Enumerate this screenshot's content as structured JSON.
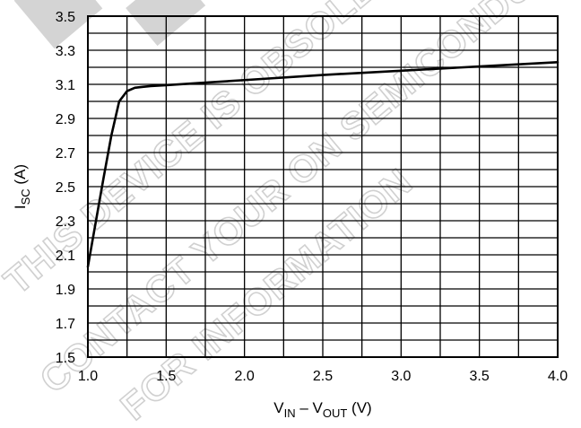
{
  "watermark": {
    "lines": [
      "THIS DEVICE IS OBSOLETE",
      "CONTACT YOUR ON SEMICONDUCTOR",
      "FOR INFORMATION"
    ],
    "color": "#d0d0d0"
  },
  "chart_data": {
    "type": "line",
    "title": "",
    "xlabel": {
      "base": "V",
      "sub1": "IN",
      "mid": " – V",
      "sub2": "OUT",
      "unit": " (V)"
    },
    "ylabel": {
      "base": "I",
      "sub": "SC",
      "unit": " (A)"
    },
    "xlim": [
      1.0,
      4.0
    ],
    "ylim": [
      1.5,
      3.5
    ],
    "xticks": [
      "1.0",
      "1.5",
      "2.0",
      "2.5",
      "3.0",
      "3.5",
      "4.0"
    ],
    "yticks": [
      "1.5",
      "1.7",
      "1.9",
      "2.1",
      "2.3",
      "2.5",
      "2.7",
      "2.9",
      "3.1",
      "3.3",
      "3.5"
    ],
    "x_minor_step": 0.25,
    "y_minor_step": 0.1,
    "grid": true,
    "series": [
      {
        "x": [
          1.0,
          1.05,
          1.1,
          1.15,
          1.2,
          1.25,
          1.3,
          1.35,
          1.4,
          1.5,
          1.75,
          2.0,
          2.5,
          3.0,
          3.5,
          4.0
        ],
        "y": [
          2.03,
          2.29,
          2.55,
          2.8,
          3.0,
          3.06,
          3.08,
          3.085,
          3.09,
          3.095,
          3.11,
          3.125,
          3.155,
          3.18,
          3.205,
          3.23
        ]
      }
    ]
  }
}
